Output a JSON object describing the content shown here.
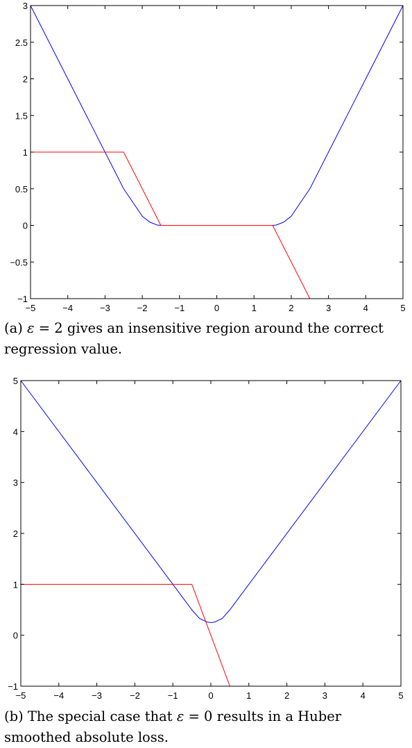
{
  "figures": [
    {
      "caption": {
        "label": "(a)",
        "symbol": "ε",
        "rest": "= 2 gives an insensitive region around the correct regression value."
      }
    },
    {
      "caption": {
        "label": "(b)",
        "prefix": "The special case that",
        "symbol": "ε",
        "rest": "= 0 results in a Huber smoothed absolute loss."
      }
    }
  ],
  "chart_data": [
    {
      "type": "line",
      "title": "",
      "xlabel": "",
      "ylabel": "",
      "xlim": [
        -5,
        5
      ],
      "ylim": [
        -1,
        3
      ],
      "xticks": [
        "−5",
        "−4",
        "−3",
        "−2",
        "−1",
        "0",
        "1",
        "2",
        "3",
        "4",
        "5"
      ],
      "yticks": [
        "−1",
        "−0.5",
        "0",
        "0.5",
        "1",
        "1.5",
        "2",
        "2.5",
        "3"
      ],
      "ytick_values": [
        -1,
        -0.5,
        0,
        0.5,
        1,
        1.5,
        2,
        2.5,
        3
      ],
      "grid": false,
      "series": [
        {
          "color": "#0000ff",
          "x": [
            -5,
            -4,
            -3,
            -2.5,
            -2,
            -1.8,
            -1.6,
            -1.5,
            0,
            1.5,
            1.6,
            1.8,
            2,
            2.5,
            3,
            4,
            5
          ],
          "y": [
            3,
            2,
            1,
            0.5,
            0.125,
            0.045,
            0.005,
            0,
            0,
            0,
            0.005,
            0.045,
            0.125,
            0.5,
            1,
            2,
            3
          ]
        },
        {
          "color": "#ff0000",
          "x": [
            -5,
            -2.5,
            -1.5,
            1.5,
            2.5,
            5
          ],
          "y": [
            1,
            1,
            0,
            0,
            -1,
            -1
          ]
        }
      ]
    },
    {
      "type": "line",
      "title": "",
      "xlabel": "",
      "ylabel": "",
      "xlim": [
        -5,
        5
      ],
      "ylim": [
        -1,
        5
      ],
      "xticks": [
        "−5",
        "−4",
        "−3",
        "−2",
        "−1",
        "0",
        "1",
        "2",
        "3",
        "4",
        "5"
      ],
      "yticks": [
        "−1",
        "0",
        "1",
        "2",
        "3",
        "4",
        "5"
      ],
      "ytick_values": [
        -1,
        0,
        1,
        2,
        3,
        4,
        5
      ],
      "grid": false,
      "series": [
        {
          "color": "#0000ff",
          "x": [
            -5,
            -3,
            -1,
            -0.5,
            -0.3,
            -0.1,
            0,
            0.1,
            0.3,
            0.5,
            1,
            3,
            5
          ],
          "y": [
            5,
            3,
            1,
            0.5,
            0.33,
            0.26,
            0.25,
            0.26,
            0.33,
            0.5,
            1,
            3,
            5
          ]
        },
        {
          "color": "#ff0000",
          "x": [
            -5,
            -0.5,
            0.5,
            5
          ],
          "y": [
            1,
            1,
            -1,
            -1
          ]
        }
      ]
    }
  ]
}
